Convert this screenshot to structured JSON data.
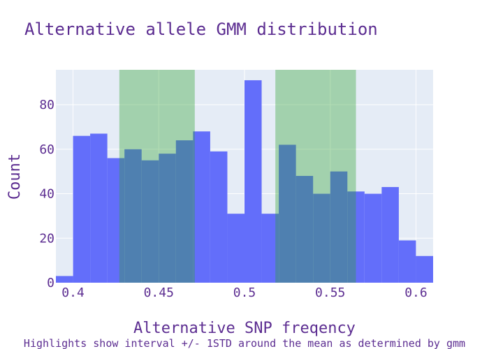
{
  "chart_data": {
    "type": "bar",
    "title": "Alternative allele GMM distribution",
    "xlabel": "Alternative SNP freqency",
    "ylabel": "Count",
    "annotation": "Highlights show interval +/- 1STD around the mean as determined by gmm",
    "xlim": [
      0.39,
      0.61
    ],
    "ylim": [
      0,
      95.7
    ],
    "x_ticks": [
      0.4,
      0.45,
      0.5,
      0.55,
      0.6
    ],
    "x_tick_labels": [
      "0.4",
      "0.45",
      "0.5",
      "0.55",
      "0.6"
    ],
    "y_ticks": [
      0,
      20,
      40,
      60,
      80
    ],
    "y_tick_labels": [
      "0",
      "20",
      "40",
      "60",
      "80"
    ],
    "bin_width": 0.01,
    "bins": [
      {
        "start": 0.39,
        "count": 3
      },
      {
        "start": 0.4,
        "count": 66
      },
      {
        "start": 0.41,
        "count": 67
      },
      {
        "start": 0.42,
        "count": 56
      },
      {
        "start": 0.43,
        "count": 60
      },
      {
        "start": 0.44,
        "count": 55
      },
      {
        "start": 0.45,
        "count": 58
      },
      {
        "start": 0.46,
        "count": 64
      },
      {
        "start": 0.47,
        "count": 68
      },
      {
        "start": 0.48,
        "count": 59
      },
      {
        "start": 0.49,
        "count": 31
      },
      {
        "start": 0.5,
        "count": 91
      },
      {
        "start": 0.51,
        "count": 31
      },
      {
        "start": 0.52,
        "count": 62
      },
      {
        "start": 0.53,
        "count": 48
      },
      {
        "start": 0.54,
        "count": 40
      },
      {
        "start": 0.55,
        "count": 50
      },
      {
        "start": 0.56,
        "count": 41
      },
      {
        "start": 0.57,
        "count": 40
      },
      {
        "start": 0.58,
        "count": 43
      },
      {
        "start": 0.59,
        "count": 19
      },
      {
        "start": 0.6,
        "count": 12
      }
    ],
    "highlights": [
      {
        "x0": 0.427,
        "x1": 0.471
      },
      {
        "x0": 0.518,
        "x1": 0.565
      }
    ],
    "grid": true,
    "colors": {
      "bar": "#636efa",
      "highlight": "#2ca02c",
      "plot_bg": "#e5ecf6",
      "grid": "#ffffff",
      "text": "#5c2d91"
    }
  }
}
